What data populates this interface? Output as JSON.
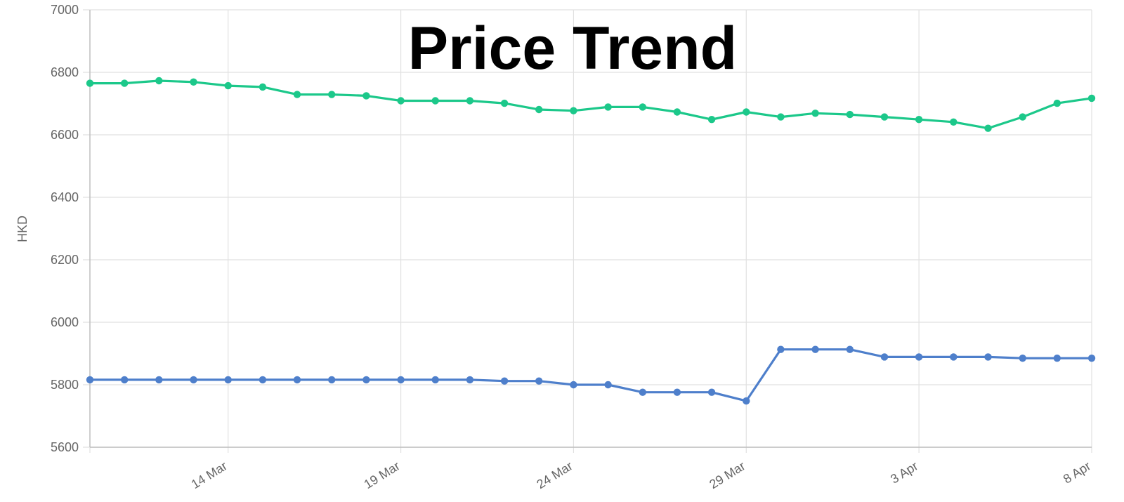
{
  "chart_data": {
    "type": "line",
    "title": "Price Trend",
    "ylabel": "HKD",
    "ylim": [
      5600,
      7000
    ],
    "yticks": [
      5600,
      5800,
      6000,
      6200,
      6400,
      6600,
      6800,
      7000
    ],
    "grid": true,
    "x": [
      "2024-03-10",
      "2024-03-11",
      "2024-03-12",
      "2024-03-13",
      "2024-03-14",
      "2024-03-15",
      "2024-03-16",
      "2024-03-17",
      "2024-03-18",
      "2024-03-19",
      "2024-03-20",
      "2024-03-21",
      "2024-03-22",
      "2024-03-23",
      "2024-03-24",
      "2024-03-25",
      "2024-03-26",
      "2024-03-27",
      "2024-03-28",
      "2024-03-29",
      "2024-03-30",
      "2024-03-31",
      "2024-04-01",
      "2024-04-02",
      "2024-04-03",
      "2024-04-04",
      "2024-04-05",
      "2024-04-06",
      "2024-04-07",
      "2024-04-08"
    ],
    "xticks": [
      {
        "date": "2024-03-14",
        "label": "14 Mar"
      },
      {
        "date": "2024-03-19",
        "label": "19 Mar"
      },
      {
        "date": "2024-03-24",
        "label": "24 Mar"
      },
      {
        "date": "2024-03-29",
        "label": "29 Mar"
      },
      {
        "date": "2024-04-03",
        "label": "3 Apr"
      },
      {
        "date": "2024-04-08",
        "label": "8 Apr"
      }
    ],
    "xlim": [
      "2024-03-10",
      "2024-04-08"
    ],
    "series": [
      {
        "color": "#1cc88a",
        "values": [
          6765,
          6765,
          6773,
          6769,
          6757,
          6753,
          6729,
          6729,
          6725,
          6709,
          6709,
          6709,
          6701,
          6681,
          6677,
          6689,
          6689,
          6673,
          6649,
          6673,
          6657,
          6669,
          6665,
          6657,
          6649,
          6641,
          6621,
          6657,
          6701,
          6717
        ]
      },
      {
        "color": "#4e7fcb",
        "values": [
          5816,
          5816,
          5816,
          5816,
          5816,
          5816,
          5816,
          5816,
          5816,
          5816,
          5816,
          5816,
          5812,
          5812,
          5800,
          5800,
          5776,
          5776,
          5776,
          5748,
          5913,
          5913,
          5913,
          5889,
          5889,
          5889,
          5889,
          5885,
          5885,
          5885
        ]
      }
    ]
  }
}
